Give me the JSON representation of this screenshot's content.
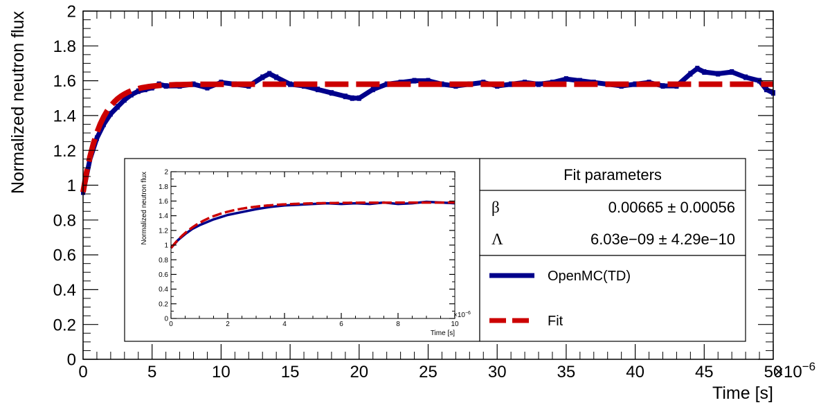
{
  "chart_data": [
    {
      "id": "main",
      "type": "line",
      "xlabel": "Time [s]",
      "ylabel": "Normalized neutron flux",
      "x_exponent_label": "×10",
      "x_exponent_power": "−6",
      "xlim": [
        0,
        50
      ],
      "ylim": [
        0,
        2
      ],
      "x_ticks": [
        0,
        5,
        10,
        15,
        20,
        25,
        30,
        35,
        40,
        45,
        50
      ],
      "x_tick_labels": [
        "0",
        "5",
        "10",
        "15",
        "20",
        "25",
        "30",
        "35",
        "40",
        "45",
        "50"
      ],
      "y_ticks": [
        0,
        0.2,
        0.4,
        0.6,
        0.8,
        1,
        1.2,
        1.4,
        1.6,
        1.8,
        2
      ],
      "y_tick_labels": [
        "0",
        "0.2",
        "0.4",
        "0.6",
        "0.8",
        "1",
        "1.2",
        "1.4",
        "1.6",
        "1.8",
        "2"
      ],
      "grid": false,
      "series": [
        {
          "name": "OpenMC(TD)",
          "color": "#00008b",
          "style": "thick-markers",
          "x": [
            0,
            0.5,
            1,
            1.5,
            2,
            2.5,
            3,
            3.5,
            4,
            4.5,
            5,
            5.5,
            6,
            7,
            8,
            9,
            10,
            11,
            12,
            13,
            13.5,
            14,
            15,
            16,
            17,
            18,
            19,
            19.5,
            20,
            21,
            22,
            23,
            24,
            25,
            26,
            27,
            28,
            29,
            30,
            31,
            32,
            33,
            34,
            35,
            36,
            37,
            38,
            39,
            40,
            41,
            42,
            43,
            44,
            44.5,
            45,
            46,
            47,
            48,
            49,
            49.5,
            50
          ],
          "y": [
            0.96,
            1.15,
            1.27,
            1.35,
            1.41,
            1.45,
            1.49,
            1.52,
            1.54,
            1.55,
            1.56,
            1.58,
            1.57,
            1.57,
            1.58,
            1.56,
            1.59,
            1.58,
            1.57,
            1.62,
            1.64,
            1.62,
            1.58,
            1.57,
            1.55,
            1.53,
            1.51,
            1.5,
            1.5,
            1.55,
            1.58,
            1.59,
            1.6,
            1.6,
            1.58,
            1.57,
            1.58,
            1.59,
            1.57,
            1.58,
            1.59,
            1.58,
            1.59,
            1.61,
            1.6,
            1.59,
            1.58,
            1.57,
            1.58,
            1.59,
            1.57,
            1.57,
            1.64,
            1.67,
            1.65,
            1.64,
            1.65,
            1.62,
            1.6,
            1.55,
            1.53
          ]
        },
        {
          "name": "Fit",
          "color": "#cc0000",
          "style": "dashed",
          "fit_y0": 0.96,
          "fit_yinf": 1.58,
          "fit_tau": 1.25
        }
      ]
    },
    {
      "id": "inset",
      "type": "line",
      "xlabel": "Time [s]",
      "ylabel": "Normalized neutron flux",
      "x_exponent_label": "×10",
      "x_exponent_power": "−6",
      "xlim": [
        0,
        10
      ],
      "ylim": [
        0,
        2
      ],
      "x_ticks": [
        0,
        2,
        4,
        6,
        8,
        10
      ],
      "x_tick_labels": [
        "0",
        "2",
        "4",
        "6",
        "8",
        "10"
      ],
      "y_ticks": [
        0,
        0.2,
        0.4,
        0.6,
        0.8,
        1,
        1.2,
        1.4,
        1.6,
        1.8,
        2
      ],
      "y_tick_labels": [
        "0",
        "0.2",
        "0.4",
        "0.6",
        "0.8",
        "1",
        "1.2",
        "1.4",
        "1.6",
        "1.8",
        "2"
      ],
      "grid": false,
      "series": [
        {
          "name": "OpenMC(TD)",
          "color": "#00008b",
          "style": "thick-markers",
          "x": [
            0,
            0.25,
            0.5,
            0.75,
            1,
            1.25,
            1.5,
            1.75,
            2,
            2.5,
            3,
            3.5,
            4,
            4.5,
            5,
            5.5,
            6,
            6.5,
            7,
            7.5,
            8,
            8.5,
            9,
            9.5,
            10
          ],
          "y": [
            0.96,
            1.07,
            1.15,
            1.22,
            1.27,
            1.31,
            1.35,
            1.38,
            1.41,
            1.45,
            1.49,
            1.52,
            1.54,
            1.55,
            1.56,
            1.57,
            1.56,
            1.57,
            1.56,
            1.58,
            1.56,
            1.57,
            1.59,
            1.58,
            1.57
          ]
        },
        {
          "name": "Fit",
          "color": "#cc0000",
          "style": "dashed",
          "fit_y0": 0.96,
          "fit_yinf": 1.58,
          "fit_tau": 1.25
        }
      ]
    }
  ],
  "fit_box": {
    "title": "Fit parameters",
    "rows": [
      {
        "symbol": "β",
        "value": "0.00665 ± 0.00056"
      },
      {
        "symbol": "Λ",
        "value": "6.03e−09 ± 4.29e−10"
      }
    ]
  },
  "legend": {
    "placement": "bottom-center",
    "entries": [
      {
        "label": "OpenMC(TD)",
        "color": "#00008b",
        "style": "solid"
      },
      {
        "label": "Fit",
        "color": "#cc0000",
        "style": "dashed"
      }
    ]
  }
}
